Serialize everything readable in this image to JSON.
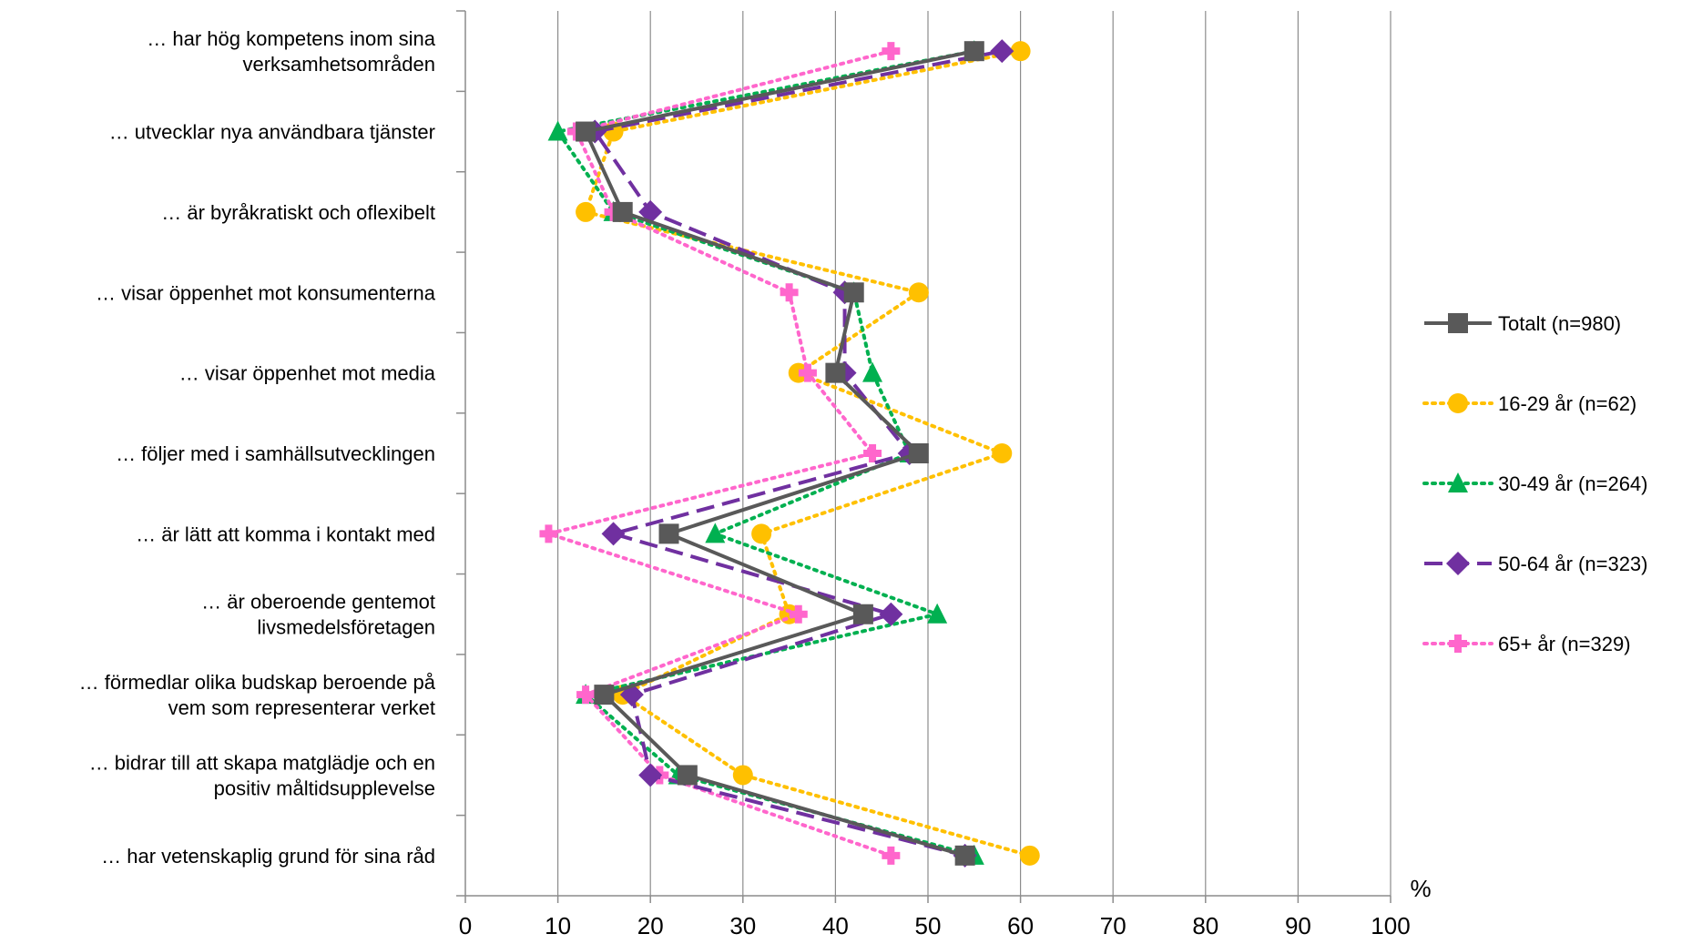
{
  "chart_data": {
    "type": "line",
    "orientation": "horizontal",
    "unit": "%",
    "xlim": [
      0,
      100
    ],
    "x_ticks": [
      0,
      10,
      20,
      30,
      40,
      50,
      60,
      70,
      80,
      90,
      100
    ],
    "grid": "vertical",
    "legend_position": "right",
    "categories": [
      [
        "… har hög kompetens inom sina",
        "verksamhetsområden"
      ],
      [
        "… utvecklar nya användbara tjänster"
      ],
      [
        "… är byråkratiskt och oflexibelt"
      ],
      [
        "… visar öppenhet mot konsumenterna"
      ],
      [
        "… visar öppenhet mot media"
      ],
      [
        "… följer med i samhällsutvecklingen"
      ],
      [
        "… är lätt att komma i kontakt med"
      ],
      [
        "… är oberoende gentemot",
        "livsmedelsföretagen"
      ],
      [
        "… förmedlar olika budskap beroende på",
        "vem som representerar verket"
      ],
      [
        "… bidrar till att skapa matglädje och en",
        "positiv måltidsupplevelse"
      ],
      [
        "… har vetenskaplig grund för sina råd"
      ]
    ],
    "series": [
      {
        "name": "Totalt (n=980)",
        "color": "#595959",
        "marker": "square",
        "dash": "solid",
        "values": [
          55,
          13,
          17,
          42,
          40,
          49,
          22,
          43,
          15,
          24,
          54
        ]
      },
      {
        "name": "16-29 år (n=62)",
        "color": "#FFC000",
        "marker": "circle",
        "dash": "dotted",
        "values": [
          60,
          16,
          13,
          49,
          36,
          58,
          32,
          35,
          17,
          30,
          61
        ]
      },
      {
        "name": "30-49 år (n=264)",
        "color": "#00B050",
        "marker": "triangle",
        "dash": "dotted",
        "values": [
          55,
          10,
          16,
          42,
          44,
          48,
          27,
          51,
          13,
          23,
          55
        ]
      },
      {
        "name": "50-64 år (n=323)",
        "color": "#7030A0",
        "marker": "diamond",
        "dash": "dashed",
        "values": [
          58,
          14,
          20,
          41,
          41,
          48,
          16,
          46,
          18,
          20,
          54
        ]
      },
      {
        "name": "65+ år (n=329)",
        "color": "#FF66CC",
        "marker": "plus",
        "dash": "dotted",
        "values": [
          46,
          12,
          16,
          35,
          37,
          44,
          9,
          36,
          13,
          21,
          46
        ]
      }
    ]
  }
}
